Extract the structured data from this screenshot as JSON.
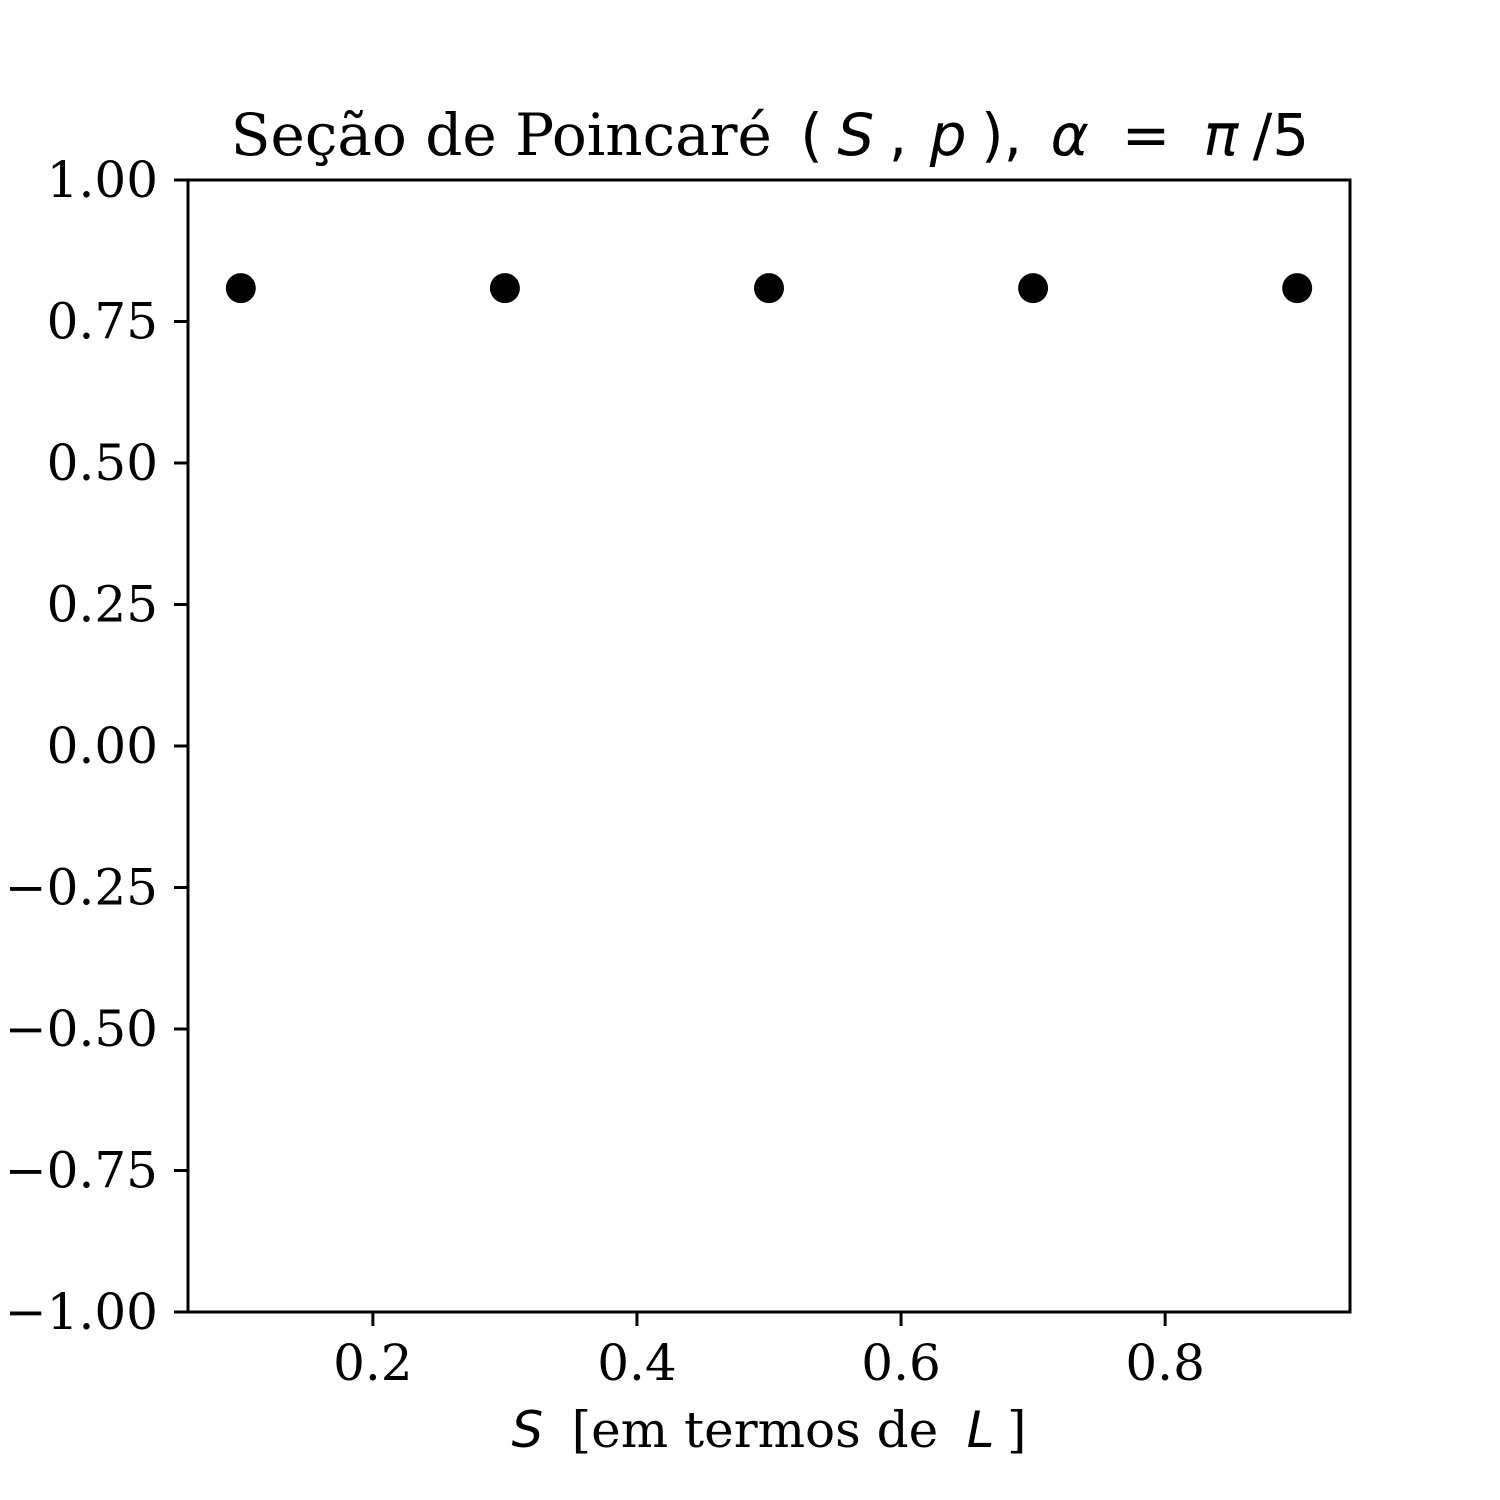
{
  "chart_data": {
    "type": "scatter",
    "title": {
      "text": "Seção de Poincaré",
      "math_open": "(",
      "math_s": "S",
      "math_comma": ",",
      "math_p": "p",
      "math_close": "),",
      "math_alpha": "α",
      "math_eq": " = ",
      "math_pi": "π",
      "math_rest": "/5"
    },
    "xlabel": {
      "var": "S",
      "text_before": " [em termos de ",
      "var2": "L",
      "text_after": "]"
    },
    "ylabel": "",
    "xlim": [
      0.06,
      0.94
    ],
    "ylim": [
      -1.0,
      1.0
    ],
    "x_ticks": [
      0.2,
      0.4,
      0.6,
      0.8
    ],
    "x_tick_labels": [
      "0.2",
      "0.4",
      "0.6",
      "0.8"
    ],
    "y_ticks": [
      1.0,
      0.75,
      0.5,
      0.25,
      0.0,
      -0.25,
      -0.5,
      -0.75,
      -1.0
    ],
    "y_tick_labels": [
      "1.00",
      "0.75",
      "0.50",
      "0.25",
      "0.00",
      "−0.25",
      "−0.50",
      "−0.75",
      "−1.00"
    ],
    "grid": false,
    "series": [
      {
        "x": [
          0.1,
          0.3,
          0.5,
          0.7,
          0.9
        ],
        "y": [
          0.809,
          0.809,
          0.809,
          0.809,
          0.809
        ],
        "color": "#000000",
        "marker": "circle"
      }
    ]
  }
}
